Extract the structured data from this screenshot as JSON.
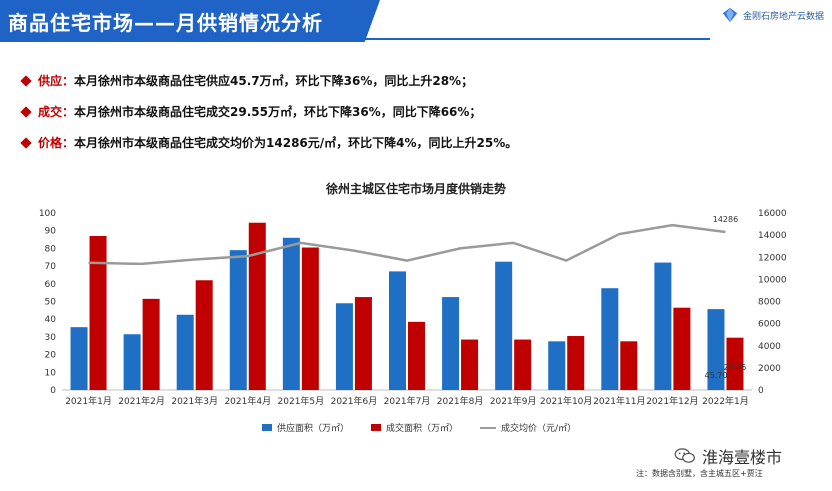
{
  "header": {
    "title": "商品住宅市场——月供销情况分析",
    "logo_text": "金刚石房地产云数据",
    "accent": "#1f63c6"
  },
  "bullets": [
    {
      "lead": "供应：",
      "text": "本月徐州市本级商品住宅供应45.7万㎡，环比下降36%，同比上升28%；"
    },
    {
      "lead": "成交：",
      "text": "本月徐州市本级商品住宅成交29.55万㎡，环比下降36%，同比下降66%；"
    },
    {
      "lead": "价格：",
      "text": "本月徐州市本级商品住宅成交均价为14286元/㎡，环比下降4%，同比上升25%。"
    }
  ],
  "chart_data": {
    "type": "bar",
    "title": "徐州主城区住宅市场月度供销走势",
    "categories": [
      "2021年1月",
      "2021年2月",
      "2021年3月",
      "2021年4月",
      "2021年5月",
      "2021年6月",
      "2021年7月",
      "2021年8月",
      "2021年9月",
      "2021年10月",
      "2021年11月",
      "2021年12月",
      "2022年1月"
    ],
    "series": [
      {
        "name": "供应面积（万㎡）",
        "type": "bar",
        "axis": "left",
        "color": "#1f6fc5",
        "values": [
          35.5,
          31.5,
          42.5,
          79,
          86,
          49,
          67,
          52.5,
          72.5,
          27.5,
          57.5,
          72,
          45.7
        ]
      },
      {
        "name": "成交面积（万㎡）",
        "type": "bar",
        "axis": "left",
        "color": "#c00000",
        "values": [
          87,
          51.5,
          62,
          94.5,
          80.5,
          52.5,
          38.5,
          28.5,
          28.5,
          30.5,
          27.5,
          46.5,
          29.55
        ]
      },
      {
        "name": "成交均价（元/㎡）",
        "type": "line",
        "axis": "right",
        "color": "#9a9a9a",
        "values": [
          11500,
          11400,
          11800,
          12100,
          13300,
          12600,
          11700,
          12800,
          13300,
          11700,
          14100,
          14900,
          14286
        ]
      }
    ],
    "y_left": {
      "min": 0,
      "max": 100,
      "ticks": [
        "0",
        "10",
        "20",
        "30",
        "40",
        "50",
        "60",
        "70",
        "80",
        "90",
        "100"
      ]
    },
    "y_right": {
      "min": 0,
      "max": 16000,
      "ticks": [
        "0",
        "2000",
        "4000",
        "6000",
        "8000",
        "10000",
        "12000",
        "14000",
        "16000"
      ]
    },
    "data_labels": {
      "supply_last": "45.70",
      "deal_last": "29.55",
      "price_last": "14286"
    },
    "legend_position": "bottom",
    "grid": false
  },
  "footer": {
    "wechat_name": "淮海壹楼市",
    "note": "注：数据含别墅，含主城五区+贾汪"
  }
}
